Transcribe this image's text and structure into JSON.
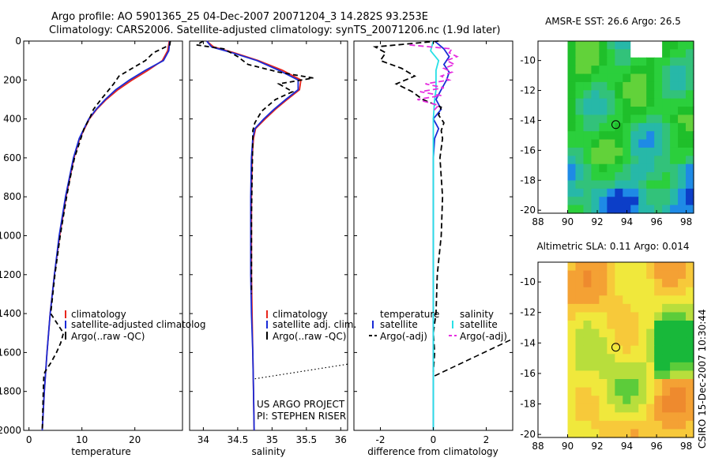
{
  "title": {
    "line1": "Argo profile: AO 5901365_25 04-Dec-2007 20071204_3 14.282S 93.253E",
    "line2": "Climatology: CARS2006. Satellite-adjusted climatology: synTS_20071206.nc (1.9d later)"
  },
  "side_label": "CSIRO 15-Dec-2007 10:30:44",
  "colors": {
    "climatology": "#e8261c",
    "satellite": "#1a2bd6",
    "argo": "#000000",
    "sal_satellite": "#28e0e6",
    "sal_argo": "#e62ee0"
  },
  "chart_data": [
    {
      "type": "line",
      "name": "temperature-profile",
      "xlabel": "temperature",
      "xlim": [
        -1,
        29
      ],
      "ylim": [
        2000,
        0
      ],
      "xticks": [
        "0",
        "10",
        "20"
      ],
      "yticks": [
        "0",
        "200",
        "400",
        "600",
        "800",
        "1000",
        "1200",
        "1400",
        "1600",
        "1800",
        "2000"
      ],
      "legend": [
        "climatology",
        "satellite-adjusted climatolog",
        "Argo(..raw -QC)"
      ],
      "series": [
        {
          "name": "climatology",
          "y": [
            0,
            50,
            100,
            150,
            200,
            250,
            300,
            350,
            400,
            500,
            600,
            800,
            1000,
            1200,
            1400,
            1600,
            1800,
            2000
          ],
          "values": [
            26.5,
            26.2,
            25.2,
            22.5,
            19.5,
            16.8,
            14.6,
            12.8,
            11.4,
            9.6,
            8.5,
            7.0,
            5.8,
            4.8,
            4.0,
            3.4,
            2.9,
            2.5
          ]
        },
        {
          "name": "satellite-adjusted climatology",
          "y": [
            0,
            50,
            100,
            150,
            200,
            250,
            300,
            350,
            400,
            500,
            600,
            800,
            1000,
            1200,
            1400,
            1600,
            1800,
            2000
          ],
          "values": [
            26.6,
            26.4,
            25.4,
            22.0,
            19.0,
            16.4,
            14.4,
            12.7,
            11.3,
            9.5,
            8.4,
            6.9,
            5.7,
            4.8,
            4.0,
            3.4,
            2.9,
            2.5
          ]
        },
        {
          "name": "Argo(..raw -QC)",
          "y": [
            0,
            20,
            60,
            100,
            140,
            180,
            220,
            260,
            300,
            350,
            400,
            450,
            500,
            600,
            700,
            800,
            1000,
            1200,
            1400,
            1500,
            1550,
            1600,
            1650,
            1700,
            1720,
            1800,
            2000
          ],
          "values": [
            26.7,
            26.6,
            23.5,
            22.0,
            19.5,
            17.0,
            16.0,
            14.8,
            13.6,
            12.2,
            11.4,
            10.4,
            9.8,
            8.6,
            7.8,
            7.1,
            5.9,
            4.9,
            4.1,
            6.5,
            6.0,
            5.2,
            4.2,
            3.0,
            2.8,
            2.7,
            2.5
          ]
        }
      ]
    },
    {
      "type": "line",
      "name": "salinity-profile",
      "xlabel": "salinity",
      "xlim": [
        33.8,
        36.1
      ],
      "ylim": [
        2000,
        0
      ],
      "xticks": [
        "34",
        "34.5",
        "35",
        "35.5",
        "36"
      ],
      "legend": [
        "climatology",
        "satellite adj. clim.",
        "Argo(..raw -QC)"
      ],
      "annotations": [
        "US ARGO PROJECT",
        "PI: STEPHEN RISER"
      ],
      "series": [
        {
          "name": "climatology",
          "y": [
            0,
            30,
            60,
            100,
            150,
            200,
            250,
            300,
            350,
            400,
            450,
            500,
            600,
            800,
            1000,
            1200,
            1400,
            1600,
            1800,
            2000
          ],
          "values": [
            34.05,
            34.15,
            34.45,
            34.8,
            35.15,
            35.42,
            35.4,
            35.22,
            35.05,
            34.9,
            34.76,
            34.73,
            34.71,
            34.7,
            34.7,
            34.7,
            34.71,
            34.72,
            34.73,
            34.74
          ]
        },
        {
          "name": "satellite adj. clim.",
          "y": [
            0,
            30,
            60,
            100,
            150,
            200,
            250,
            300,
            350,
            400,
            450,
            500,
            600,
            800,
            1000,
            1200,
            1400,
            1600,
            1800,
            2000
          ],
          "values": [
            34.05,
            34.12,
            34.42,
            34.78,
            35.1,
            35.38,
            35.38,
            35.2,
            35.03,
            34.88,
            34.75,
            34.72,
            34.7,
            34.69,
            34.69,
            34.69,
            34.7,
            34.72,
            34.73,
            34.74
          ]
        },
        {
          "name": "Argo(..raw -QC)",
          "y": [
            0,
            20,
            40,
            80,
            120,
            160,
            190,
            220,
            260,
            300,
            360,
            420,
            460,
            500,
            700,
            900,
            1100,
            1300
          ],
          "values": [
            34.0,
            33.9,
            34.3,
            34.5,
            34.65,
            35.1,
            35.6,
            35.1,
            35.3,
            35.05,
            34.85,
            34.75,
            34.72,
            34.72,
            34.71,
            34.7,
            34.7,
            34.7
          ]
        }
      ],
      "dotted_segment": {
        "x": [
          34.75,
          36.1
        ],
        "y": [
          1735,
          1660
        ]
      }
    },
    {
      "type": "line",
      "name": "difference-profile",
      "xlabel": "difference from climatology",
      "xlim": [
        -3,
        3
      ],
      "ylim": [
        2000,
        0
      ],
      "xticks": [
        "-2",
        "0",
        "2"
      ],
      "legend": [
        "temperature",
        "satellite",
        "Argo(-adj)",
        "salinity",
        "satellite",
        "Argo(-adj)"
      ],
      "series": [
        {
          "name": "temperature satellite",
          "y": [
            0,
            40,
            80,
            120,
            160,
            200,
            250,
            300,
            350,
            400,
            450,
            500,
            600,
            800,
            1000,
            1200,
            1400,
            1600,
            1800,
            2000
          ],
          "values": [
            0.05,
            0.4,
            0.6,
            0.4,
            0.6,
            0.5,
            0.3,
            0.1,
            0.3,
            0.0,
            0.2,
            0.05,
            0.0,
            0.0,
            0.0,
            0.0,
            0.0,
            0.0,
            0.0,
            0.0
          ]
        },
        {
          "name": "temperature Argo(-adj)",
          "y": [
            0,
            30,
            60,
            100,
            140,
            180,
            220,
            260,
            300,
            340,
            380,
            420,
            460,
            500,
            600,
            800,
            1000,
            1200,
            1400,
            1500,
            1600,
            1700
          ],
          "values": [
            0.2,
            -2.2,
            -1.8,
            -2.0,
            -1.2,
            -0.7,
            -1.4,
            -0.8,
            -0.4,
            0.3,
            0.2,
            0.4,
            0.3,
            0.35,
            0.25,
            0.35,
            0.3,
            0.15,
            0.1,
            0.0,
            0.05,
            0.0
          ]
        },
        {
          "name": "salinity satellite",
          "y": [
            0,
            50,
            100,
            150,
            200,
            250,
            300,
            400,
            500,
            700,
            1000,
            1500,
            2000
          ],
          "values": [
            0.0,
            -0.1,
            0.2,
            0.1,
            0.1,
            0.1,
            0.05,
            0.0,
            0.0,
            0.0,
            0.0,
            0.0,
            0.0
          ]
        },
        {
          "name": "salinity Argo(-adj)",
          "y": [
            20,
            40,
            60,
            80,
            100,
            120,
            140,
            160,
            180,
            200,
            220,
            240,
            260,
            280,
            300,
            330,
            360
          ],
          "values": [
            -0.9,
            0.7,
            0.6,
            0.9,
            0.5,
            0.8,
            0.4,
            0.7,
            0.3,
            0.6,
            -0.3,
            0.4,
            -0.5,
            0.3,
            -0.6,
            0.2,
            0.0
          ]
        }
      ],
      "dashed_segment": {
        "x": [
          0.05,
          3.0
        ],
        "y": [
          1720,
          1530
        ]
      }
    }
  ],
  "maps": [
    {
      "name": "sst-map",
      "title": "AMSR-E SST: 26.6  Argo: 26.5",
      "xticks": [
        "88",
        "90",
        "92",
        "94",
        "96",
        "98"
      ],
      "yticks": [
        "-10",
        "-12",
        "-14",
        "-16",
        "-18",
        "-20"
      ],
      "xlim": [
        88,
        98.5
      ],
      "ylim": [
        -20.2,
        -8.7
      ],
      "marker": {
        "lon": 93.25,
        "lat": -14.28
      }
    },
    {
      "name": "sla-map",
      "title": "Altimetric SLA: 0.11  Argo: 0.014",
      "xticks": [
        "88",
        "90",
        "92",
        "94",
        "96",
        "98"
      ],
      "yticks": [
        "-10",
        "-12",
        "-14",
        "-16",
        "-18",
        "-20"
      ],
      "xlim": [
        88,
        98.5
      ],
      "ylim": [
        -20.2,
        -8.7
      ],
      "marker": {
        "lon": 93.25,
        "lat": -14.28
      }
    }
  ]
}
